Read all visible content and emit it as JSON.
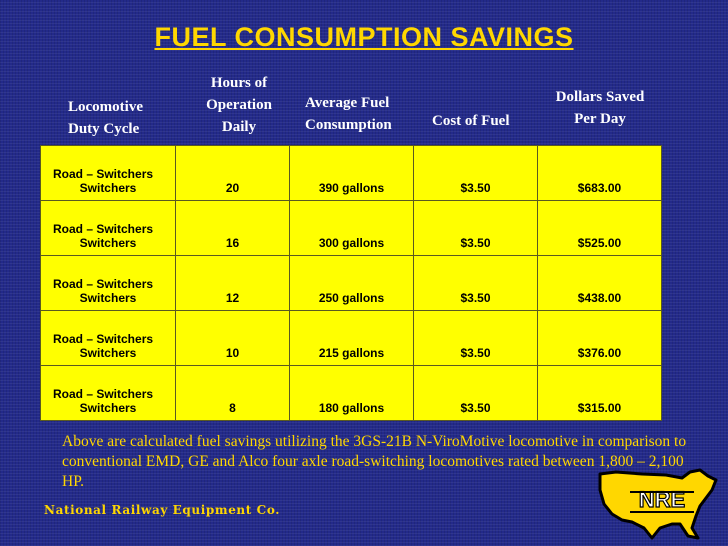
{
  "title": "FUEL CONSUMPTION SAVINGS",
  "headers": {
    "duty": "Locomotive\nDuty Cycle",
    "hours": "Hours of\nOperation\nDaily",
    "avg": "Average Fuel\nConsumption",
    "cost": "Cost of Fuel",
    "dollars": "Dollars Saved\nPer Day"
  },
  "rows": [
    {
      "duty_line1": "Road – Switchers",
      "duty_line2": "Switchers",
      "hours": "20",
      "avg": "390 gallons",
      "cost": "$3.50",
      "saved": "$683.00"
    },
    {
      "duty_line1": "Road – Switchers",
      "duty_line2": "Switchers",
      "hours": "16",
      "avg": "300 gallons",
      "cost": "$3.50",
      "saved": "$525.00"
    },
    {
      "duty_line1": "Road – Switchers",
      "duty_line2": "Switchers",
      "hours": "12",
      "avg": "250 gallons",
      "cost": "$3.50",
      "saved": "$438.00"
    },
    {
      "duty_line1": "Road – Switchers",
      "duty_line2": "Switchers",
      "hours": "10",
      "avg": "215 gallons",
      "cost": "$3.50",
      "saved": "$376.00"
    },
    {
      "duty_line1": "Road – Switchers",
      "duty_line2": "Switchers",
      "hours": "8",
      "avg": "180 gallons",
      "cost": "$3.50",
      "saved": "$315.00"
    }
  ],
  "note": "Above are calculated fuel savings utilizing the 3GS-21B N-ViroMotive locomotive in comparison to conventional EMD, GE and Alco four axle road-switching locomotives rated between 1,800 – 2,100 HP.",
  "company": "National Railway Equipment Co.",
  "logo": {
    "icon": "nre-us-map-logo",
    "text": "NRE",
    "fill": "#ffd700",
    "stroke": "#000000"
  },
  "colors": {
    "background": "#232a8a",
    "title": "#ffd700",
    "table": "#ffff00",
    "header": "#ffffff"
  }
}
